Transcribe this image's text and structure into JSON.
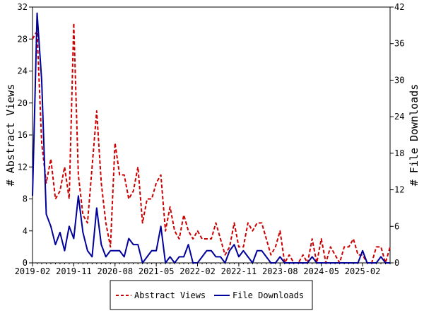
{
  "chart_data": {
    "type": "line",
    "title": "",
    "x_type": "date",
    "x_tick_labels": [
      "2019-02",
      "2019-11",
      "2020-08",
      "2021-05",
      "2022-02",
      "2022-11",
      "2023-08",
      "2024-05",
      "2025-02"
    ],
    "y_left": {
      "label": "# Abstract Views",
      "ylim": [
        0,
        32
      ],
      "ticks": [
        "0",
        "4",
        "8",
        "12",
        "16",
        "20",
        "24",
        "28",
        "32"
      ]
    },
    "y_right": {
      "label": "# File Downloads",
      "ylim": [
        0,
        42
      ],
      "ticks": [
        "0",
        "6",
        "12",
        "18",
        "24",
        "30",
        "36",
        "42"
      ]
    },
    "grid": false,
    "legend_position": "bottom",
    "x": [
      "2019-02",
      "2019-03",
      "2019-04",
      "2019-05",
      "2019-06",
      "2019-07",
      "2019-08",
      "2019-09",
      "2019-10",
      "2019-11",
      "2019-12",
      "2020-01",
      "2020-02",
      "2020-03",
      "2020-04",
      "2020-05",
      "2020-06",
      "2020-07",
      "2020-08",
      "2020-09",
      "2020-10",
      "2020-11",
      "2020-12",
      "2021-01",
      "2021-02",
      "2021-03",
      "2021-04",
      "2021-05",
      "2021-06",
      "2021-07",
      "2021-08",
      "2021-09",
      "2021-10",
      "2021-11",
      "2021-12",
      "2022-01",
      "2022-02",
      "2022-03",
      "2022-04",
      "2022-05",
      "2022-06",
      "2022-07",
      "2022-08",
      "2022-09",
      "2022-10",
      "2022-11",
      "2022-12",
      "2023-01",
      "2023-02",
      "2023-03",
      "2023-04",
      "2023-05",
      "2023-06",
      "2023-07",
      "2023-08",
      "2023-09",
      "2023-10",
      "2023-11",
      "2023-12",
      "2024-01",
      "2024-02",
      "2024-03",
      "2024-04",
      "2024-05",
      "2024-06",
      "2024-07",
      "2024-08",
      "2024-09",
      "2024-10",
      "2024-11",
      "2024-12",
      "2025-01",
      "2025-02",
      "2025-03",
      "2025-04",
      "2025-05",
      "2025-06",
      "2025-07",
      "2025-08"
    ],
    "series": [
      {
        "name": "Abstract Views",
        "axis": "left",
        "color": "#cc0000",
        "dash": true,
        "values": [
          28,
          29,
          15,
          10,
          13,
          8,
          9,
          12,
          8,
          30,
          11,
          6,
          5,
          12,
          19,
          10,
          5,
          2,
          15,
          11,
          11,
          8,
          9,
          12,
          5,
          8,
          8,
          10,
          11,
          4,
          7,
          4,
          3,
          6,
          4,
          3,
          4,
          3,
          3,
          3,
          5,
          3,
          1,
          2,
          5,
          2,
          2,
          5,
          4,
          5,
          5,
          3,
          1,
          2,
          4,
          0,
          1,
          0,
          0,
          1,
          0,
          3,
          0,
          3,
          0,
          2,
          1,
          0,
          2,
          2,
          3,
          1,
          1,
          0,
          0,
          2,
          2,
          0,
          2
        ]
      },
      {
        "name": "File Downloads",
        "axis": "right",
        "color": "#00009a",
        "dash": false,
        "values": [
          11,
          41,
          30,
          8,
          6,
          3,
          5,
          2,
          6,
          4,
          11,
          5,
          2,
          1,
          9,
          3,
          1,
          2,
          2,
          2,
          1,
          4,
          3,
          3,
          0,
          1,
          2,
          2,
          6,
          0,
          1,
          0,
          1,
          1,
          3,
          0,
          0,
          1,
          2,
          2,
          1,
          1,
          0,
          2,
          3,
          1,
          2,
          1,
          0,
          2,
          2,
          1,
          0,
          0,
          1,
          0,
          0,
          0,
          0,
          0,
          0,
          1,
          0,
          0,
          0,
          0,
          0,
          0,
          0,
          0,
          0,
          0,
          2,
          0,
          0,
          0,
          1,
          0,
          0
        ]
      }
    ]
  }
}
